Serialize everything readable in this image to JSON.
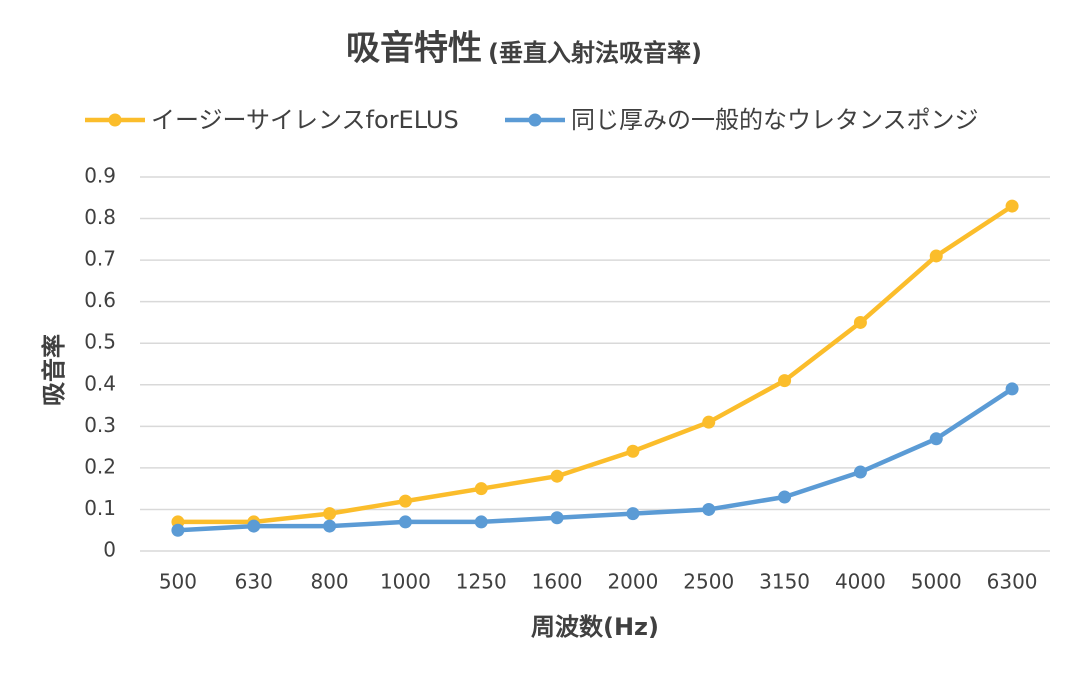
{
  "chart_data": {
    "type": "line",
    "title": "吸音特性",
    "subtitle": "(垂直入射法吸音率)",
    "x_label": "周波数(Hz)",
    "y_label": "吸音率",
    "categories": [
      "500",
      "630",
      "800",
      "1000",
      "1250",
      "1600",
      "2000",
      "2500",
      "3150",
      "4000",
      "5000",
      "6300"
    ],
    "series": [
      {
        "name": "イージーサイレンスforELUS",
        "color": "#fbbd2b",
        "values": [
          0.07,
          0.07,
          0.09,
          0.12,
          0.15,
          0.18,
          0.24,
          0.31,
          0.41,
          0.55,
          0.71,
          0.83
        ]
      },
      {
        "name": "同じ厚みの一般的なウレタンスポンジ",
        "color": "#5b9bd5",
        "values": [
          0.05,
          0.06,
          0.06,
          0.07,
          0.07,
          0.08,
          0.09,
          0.1,
          0.13,
          0.19,
          0.27,
          0.39
        ]
      }
    ],
    "ylim": [
      0,
      0.9
    ],
    "yticks": [
      0,
      0.1,
      0.2,
      0.3,
      0.4,
      0.5,
      0.6,
      0.7,
      0.8,
      0.9
    ],
    "grid": true,
    "legend": "top"
  }
}
